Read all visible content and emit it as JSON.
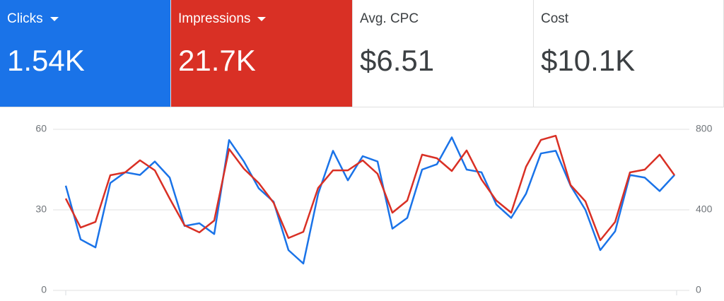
{
  "cards": [
    {
      "label": "Clicks",
      "value": "1.54K",
      "background": "#1a73e8",
      "text_color": "#ffffff",
      "dropdown": true
    },
    {
      "label": "Impressions",
      "value": "21.7K",
      "background": "#d93025",
      "text_color": "#ffffff",
      "dropdown": true
    },
    {
      "label": "Avg. CPC",
      "value": "$6.51",
      "background": "#ffffff",
      "text_color": "#3c4043",
      "dropdown": false
    },
    {
      "label": "Cost",
      "value": "$10.1K",
      "background": "#ffffff",
      "text_color": "#3c4043",
      "dropdown": false
    }
  ],
  "chart_data": {
    "type": "line",
    "ylim": [
      0,
      60
    ],
    "yticks": [
      0,
      30,
      60
    ],
    "y2lim": [
      0,
      800
    ],
    "y2ticks": [
      0,
      400,
      800
    ],
    "grid": true,
    "series": [
      {
        "color": "#1a73e8",
        "axis": "y",
        "values": [
          39,
          19,
          16,
          40,
          44,
          43,
          48,
          42,
          24,
          25,
          21,
          56,
          48,
          38,
          33,
          15,
          10,
          36,
          52,
          41,
          50,
          48,
          23,
          27,
          45,
          47,
          57,
          45,
          44,
          32,
          27,
          36,
          51,
          52,
          39,
          30,
          15,
          22,
          43,
          42,
          37,
          43
        ]
      },
      {
        "color": "#d93025",
        "axis": "y2",
        "values": [
          456,
          312,
          340,
          572,
          586,
          646,
          596,
          456,
          323,
          288,
          347,
          702,
          604,
          533,
          435,
          260,
          291,
          509,
          596,
          596,
          646,
          579,
          386,
          446,
          674,
          656,
          593,
          695,
          551,
          446,
          386,
          614,
          747,
          768,
          523,
          442,
          249,
          340,
          586,
          600,
          674,
          572
        ]
      }
    ]
  }
}
